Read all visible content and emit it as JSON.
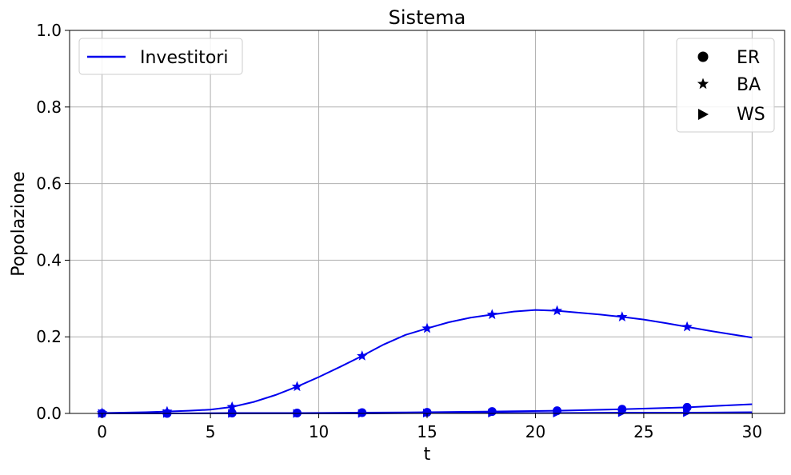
{
  "chart_data": {
    "type": "line",
    "title": "Sistema",
    "xlabel": "t",
    "ylabel": "Popolazione",
    "xlim": [
      -1.5,
      31.5
    ],
    "ylim": [
      0,
      1.0
    ],
    "xticks": [
      0,
      5,
      10,
      15,
      20,
      25,
      30
    ],
    "xtick_labels": [
      "0",
      "5",
      "10",
      "15",
      "20",
      "25",
      "30"
    ],
    "yticks": [
      0.0,
      0.2,
      0.4,
      0.6,
      0.8,
      1.0
    ],
    "ytick_labels": [
      "0.0",
      "0.2",
      "0.4",
      "0.6",
      "0.8",
      "1.0"
    ],
    "grid": true,
    "legend_series": {
      "placement": "top-left",
      "entries": [
        {
          "label": "Investitori",
          "color": "#0000ee"
        }
      ]
    },
    "legend_markers": {
      "placement": "top-right",
      "entries": [
        {
          "label": "ER",
          "marker": "circle"
        },
        {
          "label": "BA",
          "marker": "star"
        },
        {
          "label": "WS",
          "marker": "triangle-right"
        }
      ]
    },
    "series": [
      {
        "network": "BA",
        "color": "#0000ee",
        "marker": "star",
        "x": [
          0,
          1,
          2,
          3,
          4,
          5,
          6,
          7,
          8,
          9,
          10,
          11,
          12,
          13,
          14,
          15,
          16,
          17,
          18,
          19,
          20,
          21,
          22,
          23,
          24,
          25,
          26,
          27,
          28,
          29,
          30
        ],
        "y": [
          0.001,
          0.002,
          0.003,
          0.005,
          0.007,
          0.01,
          0.017,
          0.03,
          0.048,
          0.07,
          0.095,
          0.122,
          0.15,
          0.18,
          0.205,
          0.222,
          0.238,
          0.25,
          0.258,
          0.266,
          0.27,
          0.268,
          0.263,
          0.258,
          0.252,
          0.245,
          0.236,
          0.226,
          0.216,
          0.207,
          0.198
        ],
        "marker_x": [
          0,
          3,
          6,
          9,
          12,
          15,
          18,
          21,
          24,
          27
        ]
      },
      {
        "network": "ER",
        "color": "#0000ee",
        "marker": "circle",
        "x": [
          0,
          3,
          6,
          9,
          12,
          15,
          18,
          21,
          24,
          27,
          30
        ],
        "y": [
          0.0,
          0.0,
          0.001,
          0.001,
          0.002,
          0.003,
          0.005,
          0.007,
          0.011,
          0.016,
          0.024
        ],
        "marker_x": [
          0,
          3,
          6,
          9,
          12,
          15,
          18,
          21,
          24,
          27
        ]
      },
      {
        "network": "WS",
        "color": "#0000ee",
        "marker": "triangle-right",
        "x": [
          0,
          3,
          6,
          9,
          12,
          15,
          18,
          21,
          24,
          27,
          30
        ],
        "y": [
          0.0,
          0.0,
          0.0,
          0.0,
          0.0,
          0.001,
          0.001,
          0.001,
          0.002,
          0.002,
          0.003
        ],
        "marker_x": [
          0,
          3,
          6,
          9,
          12,
          15,
          18,
          21,
          24,
          27
        ]
      }
    ]
  }
}
